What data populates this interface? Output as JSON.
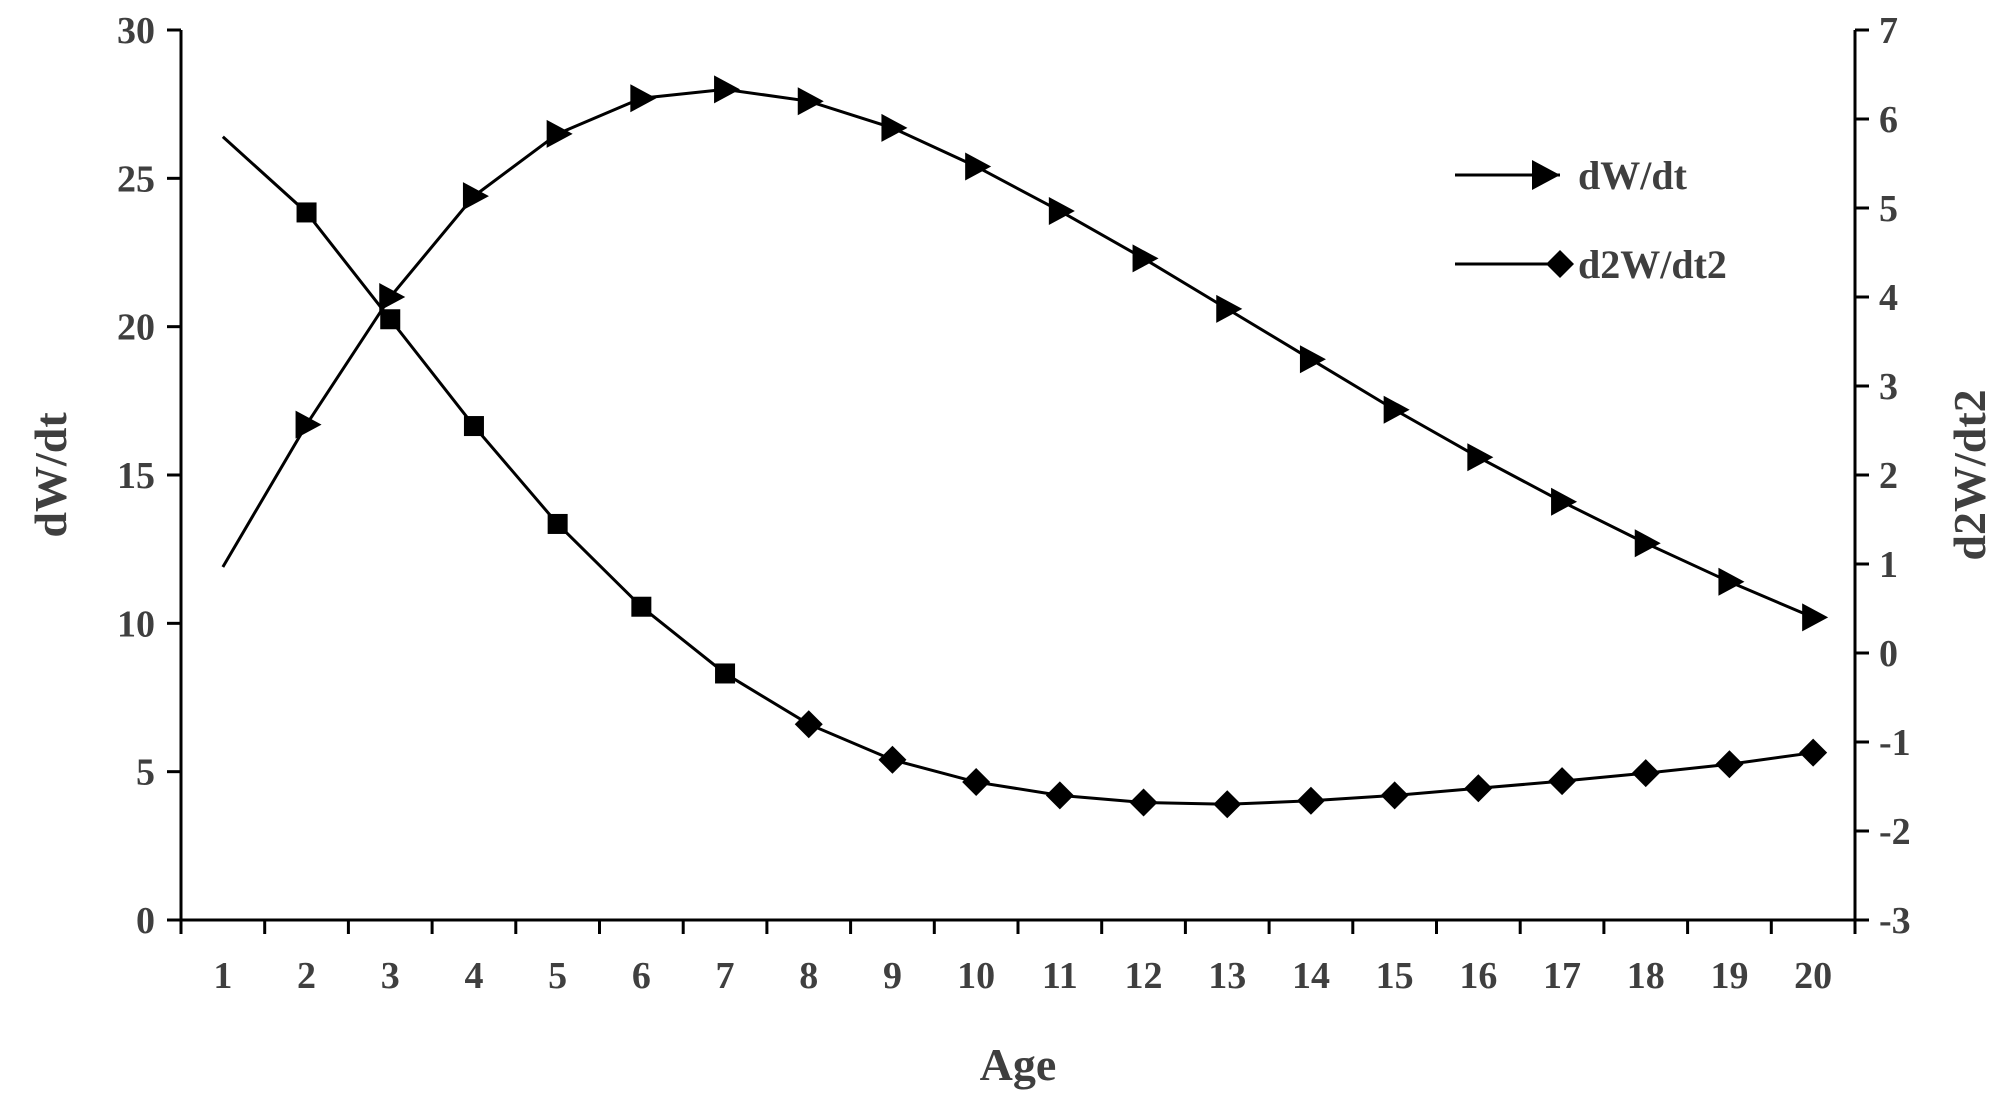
{
  "chart_data": {
    "type": "line",
    "x": [
      1,
      2,
      3,
      4,
      5,
      6,
      7,
      8,
      9,
      10,
      11,
      12,
      13,
      14,
      15,
      16,
      17,
      18,
      19,
      20
    ],
    "xlabel": "Age",
    "ylabel_left": "dW/dt",
    "ylabel_right": "d2W/dt2",
    "ylim_left": [
      0,
      30
    ],
    "ylim_right": [
      -3,
      7
    ],
    "yticks_left": [
      0,
      5,
      10,
      15,
      20,
      25,
      30
    ],
    "yticks_right": [
      -3,
      -2,
      -1,
      0,
      1,
      2,
      3,
      4,
      5,
      6,
      7
    ],
    "legend_position": "top-right",
    "grid": false,
    "series": [
      {
        "name": "dW/dt",
        "axis": "left",
        "marker": "triangle-right",
        "values": [
          11.9,
          16.7,
          21.0,
          24.4,
          26.5,
          27.7,
          28.0,
          27.6,
          26.7,
          25.4,
          23.9,
          22.3,
          20.6,
          18.9,
          17.2,
          15.6,
          14.1,
          12.7,
          11.4,
          10.2
        ]
      },
      {
        "name": "d2W/dt2",
        "axis": "right",
        "marker": "square-then-diamond",
        "values": [
          5.8,
          4.95,
          3.75,
          2.55,
          1.45,
          0.52,
          -0.23,
          -0.8,
          -1.2,
          -1.45,
          -1.6,
          -1.68,
          -1.7,
          -1.66,
          -1.6,
          -1.52,
          -1.44,
          -1.35,
          -1.25,
          -1.12
        ]
      }
    ]
  }
}
